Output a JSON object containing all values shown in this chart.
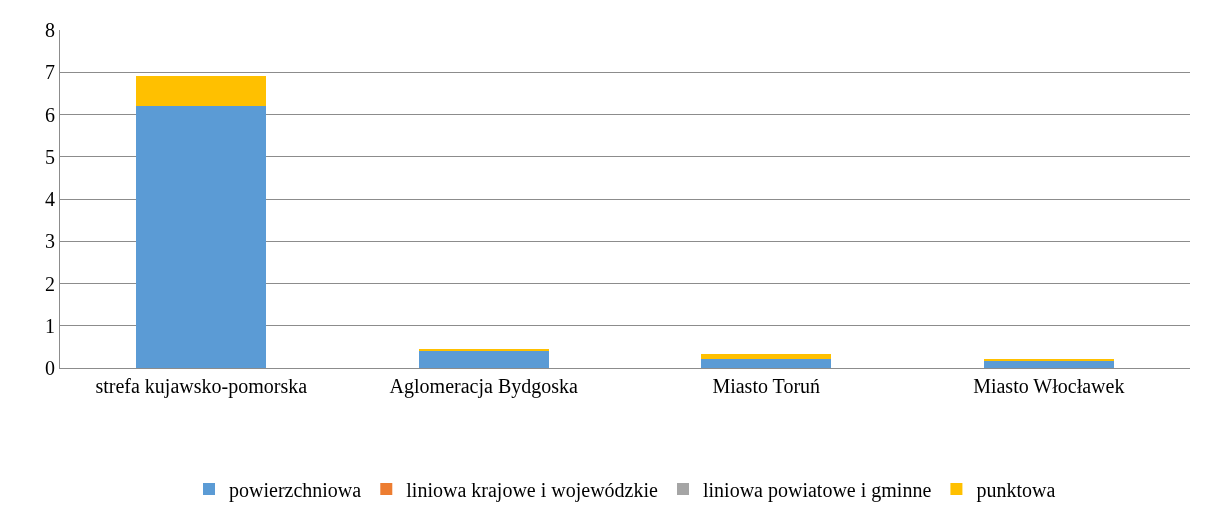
{
  "chart_data": {
    "type": "bar",
    "stacked": true,
    "categories": [
      "strefa kujawsko-pomorska",
      "Aglomeracja Bydgoska",
      "Miasto Toruń",
      "Miasto Włocławek"
    ],
    "series": [
      {
        "name": "powierzchniowa",
        "color": "#5b9bd5",
        "values": [
          6.2,
          0.42,
          0.22,
          0.17
        ]
      },
      {
        "name": "liniowa krajowe i wojewódzkie",
        "color": "#ed7d31",
        "values": [
          0,
          0,
          0,
          0
        ]
      },
      {
        "name": "liniowa powiatowe i gminne",
        "color": "#a5a5a5",
        "values": [
          0,
          0,
          0,
          0
        ]
      },
      {
        "name": "punktowa",
        "color": "#ffc000",
        "values": [
          0.7,
          0.02,
          0.1,
          0.05
        ]
      }
    ],
    "ylim": [
      0,
      8
    ],
    "yticks": [
      0,
      1,
      2,
      3,
      4,
      5,
      6,
      7,
      8
    ],
    "grid": "y",
    "legend": "bottom"
  }
}
